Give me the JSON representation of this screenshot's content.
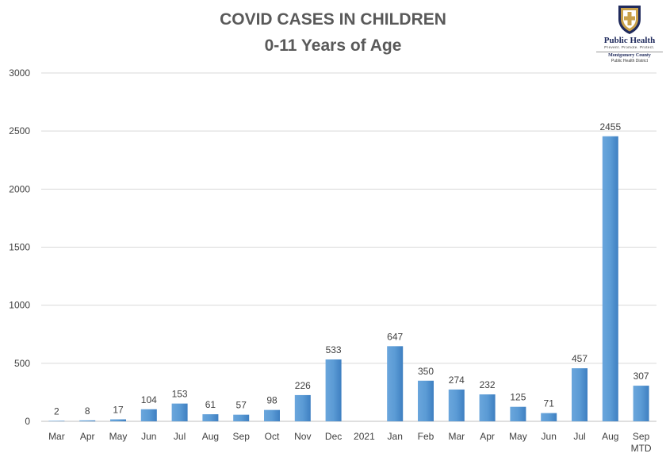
{
  "title": {
    "line1": "COVID CASES IN CHILDREN",
    "line2": "0-11 Years of Age"
  },
  "logo": {
    "name": "Public Health",
    "tagline": "Prevent. Promote. Protect.",
    "county": "Montgomery County",
    "district": "Public Health District",
    "icon": "shield-cross-icon",
    "colors": {
      "shield": "#1f2a5c",
      "accent": "#c9a14a"
    }
  },
  "colors": {
    "bar": "#5b9bd5",
    "bar_dark": "#3e7fc1",
    "grid": "#d9d9d9",
    "axis_text": "#404040",
    "title": "#595959"
  },
  "chart_data": {
    "type": "bar",
    "categories": [
      "Mar",
      "Apr",
      "May",
      "Jun",
      "Jul",
      "Aug",
      "Sep",
      "Oct",
      "Nov",
      "Dec",
      "2021",
      "Jan",
      "Feb",
      "Mar",
      "Apr",
      "May",
      "Jun",
      "Jul",
      "Aug",
      "Sep\nMTD"
    ],
    "values": [
      2,
      8,
      17,
      104,
      153,
      61,
      57,
      98,
      226,
      533,
      null,
      647,
      350,
      274,
      232,
      125,
      71,
      457,
      2455,
      307
    ],
    "data_labels": [
      "2",
      "8",
      "17",
      "104",
      "153",
      "61",
      "57",
      "98",
      "226",
      "533",
      "",
      "647",
      "350",
      "274",
      "232",
      "125",
      "71",
      "457",
      "2455",
      "307"
    ],
    "title": "COVID CASES IN CHILDREN 0-11 Years of Age",
    "xlabel": "",
    "ylabel": "",
    "ylim": [
      0,
      3000
    ],
    "yticks": [
      0,
      500,
      1000,
      1500,
      2000,
      2500,
      3000
    ],
    "grid": true,
    "legend": "none"
  }
}
